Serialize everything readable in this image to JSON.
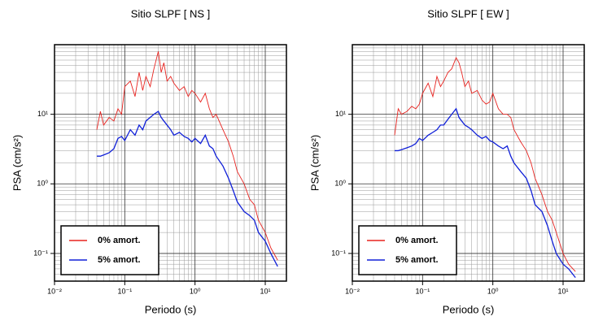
{
  "chart_data": [
    {
      "type": "line",
      "title": "Sitio SLPF [ NS ]",
      "x_label": "Periodo (s)",
      "y_label": "PSA (cm/s²)",
      "x_scale": "log",
      "y_scale": "log",
      "grid": true,
      "minor_grid": true,
      "legend_position": "lower left",
      "xlim": [
        0.01,
        20
      ],
      "ylim": [
        0.04,
        100
      ],
      "xticks": [
        {
          "value": 0.01,
          "label": "10⁻²"
        },
        {
          "value": 0.1,
          "label": "10⁻¹"
        },
        {
          "value": 1,
          "label": "10⁰"
        },
        {
          "value": 10,
          "label": "10¹"
        }
      ],
      "yticks": [
        {
          "value": 0.1,
          "label": "10⁻¹"
        },
        {
          "value": 1,
          "label": "10⁰"
        },
        {
          "value": 10,
          "label": "10¹"
        }
      ],
      "x": [
        0.04,
        0.045,
        0.05,
        0.06,
        0.07,
        0.08,
        0.09,
        0.1,
        0.12,
        0.14,
        0.16,
        0.18,
        0.2,
        0.23,
        0.26,
        0.3,
        0.33,
        0.36,
        0.4,
        0.45,
        0.5,
        0.6,
        0.7,
        0.8,
        0.9,
        1.0,
        1.2,
        1.4,
        1.6,
        1.8,
        2.0,
        2.5,
        3.0,
        3.5,
        4.0,
        5.0,
        6.0,
        7.0,
        8.0,
        10,
        12,
        15
      ],
      "series": [
        {
          "name": "0% amort.",
          "color": "#e8231f",
          "values": [
            6,
            11,
            7,
            9,
            8,
            12,
            10,
            25,
            30,
            18,
            40,
            22,
            35,
            25,
            45,
            80,
            40,
            55,
            30,
            35,
            28,
            22,
            25,
            18,
            22,
            20,
            15,
            20,
            12,
            9,
            10,
            6,
            4,
            2.5,
            1.5,
            1.0,
            0.6,
            0.5,
            0.3,
            0.2,
            0.12,
            0.08
          ]
        },
        {
          "name": "5% amort.",
          "color": "#1020d8",
          "values": [
            2.5,
            2.5,
            2.6,
            2.8,
            3.2,
            4.5,
            4.8,
            4.2,
            6,
            5,
            7,
            6,
            8,
            9,
            10,
            11,
            9,
            8,
            7,
            6,
            5,
            5.5,
            4.8,
            4.5,
            4,
            4.5,
            3.8,
            5,
            3.5,
            3.2,
            2.5,
            1.8,
            1.2,
            0.8,
            0.55,
            0.4,
            0.35,
            0.3,
            0.2,
            0.15,
            0.1,
            0.065
          ]
        }
      ]
    },
    {
      "type": "line",
      "title": "Sitio SLPF [ EW ]",
      "x_label": "Periodo (s)",
      "y_label": "PSA (cm/s²)",
      "x_scale": "log",
      "y_scale": "log",
      "grid": true,
      "minor_grid": true,
      "legend_position": "lower left",
      "xlim": [
        0.01,
        20
      ],
      "ylim": [
        0.04,
        100
      ],
      "xticks": [
        {
          "value": 0.01,
          "label": "10⁻²"
        },
        {
          "value": 0.1,
          "label": "10⁻¹"
        },
        {
          "value": 1,
          "label": "10⁰"
        },
        {
          "value": 10,
          "label": "10¹"
        }
      ],
      "yticks": [
        {
          "value": 0.1,
          "label": "10⁻¹"
        },
        {
          "value": 1,
          "label": "10⁰"
        },
        {
          "value": 10,
          "label": "10¹"
        }
      ],
      "x": [
        0.04,
        0.045,
        0.05,
        0.06,
        0.07,
        0.08,
        0.09,
        0.1,
        0.12,
        0.14,
        0.16,
        0.18,
        0.2,
        0.23,
        0.26,
        0.3,
        0.33,
        0.36,
        0.4,
        0.45,
        0.5,
        0.6,
        0.7,
        0.8,
        0.9,
        1.0,
        1.2,
        1.4,
        1.6,
        1.8,
        2.0,
        2.5,
        3.0,
        3.5,
        4.0,
        5.0,
        6.0,
        7.0,
        8.0,
        10,
        12,
        15
      ],
      "series": [
        {
          "name": "0% amort.",
          "color": "#e8231f",
          "values": [
            5,
            12,
            10,
            11,
            13,
            12,
            14,
            20,
            28,
            18,
            35,
            25,
            30,
            40,
            45,
            65,
            55,
            40,
            25,
            30,
            20,
            22,
            16,
            14,
            15,
            20,
            12,
            10,
            10,
            9,
            6,
            4,
            3,
            2,
            1.2,
            0.7,
            0.4,
            0.3,
            0.2,
            0.1,
            0.07,
            0.055
          ]
        },
        {
          "name": "5% amort.",
          "color": "#1020d8",
          "values": [
            3,
            3,
            3.1,
            3.3,
            3.5,
            3.8,
            4.5,
            4.2,
            5,
            5.5,
            6,
            7,
            7,
            8.5,
            10,
            12,
            9,
            8,
            7,
            6.5,
            6,
            5,
            4.5,
            4.8,
            4.2,
            4,
            3.5,
            3.2,
            3.5,
            2.5,
            2,
            1.5,
            1.2,
            0.8,
            0.5,
            0.4,
            0.25,
            0.15,
            0.1,
            0.07,
            0.06,
            0.045
          ]
        }
      ]
    }
  ]
}
